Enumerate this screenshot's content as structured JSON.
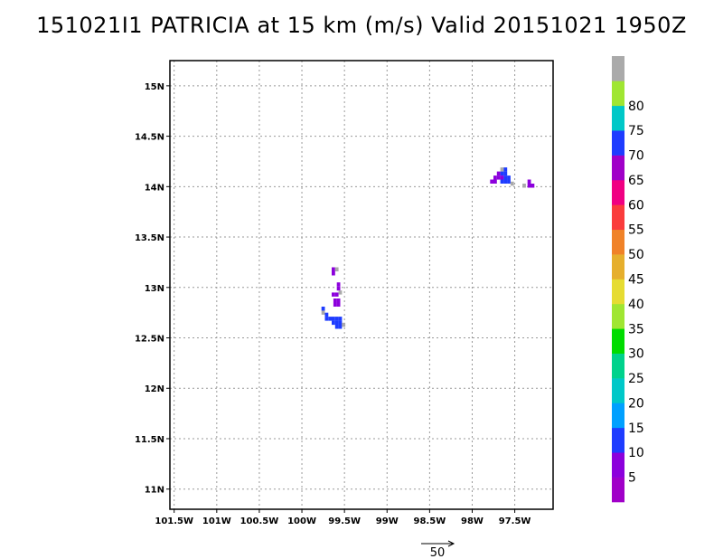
{
  "chart_data": {
    "type": "heatmap",
    "title": "151021I1 PATRICIA at 15 km (m/s) Valid 20151021 1950Z",
    "xlim": [
      -101.55,
      -97.05
    ],
    "ylim": [
      10.8,
      15.25
    ],
    "grid": true,
    "x_ticks": [
      {
        "value": -101.5,
        "label": "101.5W"
      },
      {
        "value": -101.0,
        "label": "101W"
      },
      {
        "value": -100.5,
        "label": "100.5W"
      },
      {
        "value": -100.0,
        "label": "100W"
      },
      {
        "value": -99.5,
        "label": "99.5W"
      },
      {
        "value": -99.0,
        "label": "99W"
      },
      {
        "value": -98.5,
        "label": "98.5W"
      },
      {
        "value": -98.0,
        "label": "98W"
      },
      {
        "value": -97.5,
        "label": "97.5W"
      }
    ],
    "y_ticks": [
      {
        "value": 11.0,
        "label": "11N"
      },
      {
        "value": 11.5,
        "label": "11.5N"
      },
      {
        "value": 12.0,
        "label": "12N"
      },
      {
        "value": 12.5,
        "label": "12.5N"
      },
      {
        "value": 13.0,
        "label": "13N"
      },
      {
        "value": 13.5,
        "label": "13.5N"
      },
      {
        "value": 14.0,
        "label": "14N"
      },
      {
        "value": 14.5,
        "label": "14.5N"
      },
      {
        "value": 15.0,
        "label": "15N"
      }
    ],
    "colorbar": {
      "levels": [
        {
          "value": 0,
          "color": "#a000c8"
        },
        {
          "value": 5,
          "color": "#8c00dc"
        },
        {
          "value": 10,
          "color": "#1e3cff"
        },
        {
          "value": 15,
          "color": "#00a0ff"
        },
        {
          "value": 20,
          "color": "#00c8c8"
        },
        {
          "value": 25,
          "color": "#00d28c"
        },
        {
          "value": 30,
          "color": "#00dc00"
        },
        {
          "value": 35,
          "color": "#a0e632"
        },
        {
          "value": 40,
          "color": "#e6dc32"
        },
        {
          "value": 45,
          "color": "#e6af2d"
        },
        {
          "value": 50,
          "color": "#f08228"
        },
        {
          "value": 55,
          "color": "#fa3c3c"
        },
        {
          "value": 60,
          "color": "#f00082"
        },
        {
          "value": 65,
          "color": "#a000c8"
        },
        {
          "value": 70,
          "color": "#1e3cff"
        },
        {
          "value": 75,
          "color": "#00c8c8"
        },
        {
          "value": 80,
          "color": "#a0e632"
        },
        {
          "value": 85,
          "color": "#aaaaaa"
        }
      ],
      "tick_labels": [
        "5",
        "10",
        "15",
        "20",
        "25",
        "30",
        "35",
        "40",
        "45",
        "50",
        "55",
        "60",
        "65",
        "70",
        "75",
        "80"
      ]
    },
    "cells": [
      {
        "lon": -99.63,
        "lat": 13.18,
        "color": "#8c00dc"
      },
      {
        "lon": -99.63,
        "lat": 13.14,
        "color": "#8c00dc"
      },
      {
        "lon": -99.59,
        "lat": 13.18,
        "color": "#aaaaaa"
      },
      {
        "lon": -99.57,
        "lat": 13.03,
        "color": "#8c00dc"
      },
      {
        "lon": -99.57,
        "lat": 12.99,
        "color": "#8c00dc"
      },
      {
        "lon": -99.63,
        "lat": 12.93,
        "color": "#8c00dc"
      },
      {
        "lon": -99.59,
        "lat": 12.93,
        "color": "#8c00dc"
      },
      {
        "lon": -99.55,
        "lat": 12.95,
        "color": "#aaaaaa"
      },
      {
        "lon": -99.61,
        "lat": 12.87,
        "color": "#8c00dc"
      },
      {
        "lon": -99.57,
        "lat": 12.87,
        "color": "#8c00dc"
      },
      {
        "lon": -99.61,
        "lat": 12.83,
        "color": "#8c00dc"
      },
      {
        "lon": -99.57,
        "lat": 12.83,
        "color": "#8c00dc"
      },
      {
        "lon": -99.75,
        "lat": 12.79,
        "color": "#1e3cff"
      },
      {
        "lon": -99.75,
        "lat": 12.75,
        "color": "#aaaaaa"
      },
      {
        "lon": -99.71,
        "lat": 12.73,
        "color": "#1e3cff"
      },
      {
        "lon": -99.71,
        "lat": 12.69,
        "color": "#1e3cff"
      },
      {
        "lon": -99.67,
        "lat": 12.69,
        "color": "#1e3cff"
      },
      {
        "lon": -99.63,
        "lat": 12.69,
        "color": "#1e3cff"
      },
      {
        "lon": -99.59,
        "lat": 12.69,
        "color": "#1e3cff"
      },
      {
        "lon": -99.55,
        "lat": 12.69,
        "color": "#1e3cff"
      },
      {
        "lon": -99.63,
        "lat": 12.65,
        "color": "#1e3cff"
      },
      {
        "lon": -99.59,
        "lat": 12.65,
        "color": "#1e3cff"
      },
      {
        "lon": -99.55,
        "lat": 12.65,
        "color": "#1e3cff"
      },
      {
        "lon": -99.59,
        "lat": 12.61,
        "color": "#1e3cff"
      },
      {
        "lon": -99.55,
        "lat": 12.61,
        "color": "#1e3cff"
      },
      {
        "lon": -99.51,
        "lat": 12.63,
        "color": "#aaaaaa"
      },
      {
        "lon": -97.65,
        "lat": 14.17,
        "color": "#aaaaaa"
      },
      {
        "lon": -97.61,
        "lat": 14.17,
        "color": "#1e3cff"
      },
      {
        "lon": -97.69,
        "lat": 14.13,
        "color": "#8c00dc"
      },
      {
        "lon": -97.65,
        "lat": 14.13,
        "color": "#1e3cff"
      },
      {
        "lon": -97.61,
        "lat": 14.13,
        "color": "#1e3cff"
      },
      {
        "lon": -97.73,
        "lat": 14.09,
        "color": "#8c00dc"
      },
      {
        "lon": -97.69,
        "lat": 14.09,
        "color": "#8c00dc"
      },
      {
        "lon": -97.65,
        "lat": 14.09,
        "color": "#8c00dc"
      },
      {
        "lon": -97.61,
        "lat": 14.09,
        "color": "#1e3cff"
      },
      {
        "lon": -97.57,
        "lat": 14.09,
        "color": "#1e3cff"
      },
      {
        "lon": -97.77,
        "lat": 14.05,
        "color": "#8c00dc"
      },
      {
        "lon": -97.73,
        "lat": 14.05,
        "color": "#8c00dc"
      },
      {
        "lon": -97.65,
        "lat": 14.05,
        "color": "#1e3cff"
      },
      {
        "lon": -97.61,
        "lat": 14.05,
        "color": "#1e3cff"
      },
      {
        "lon": -97.57,
        "lat": 14.05,
        "color": "#1e3cff"
      },
      {
        "lon": -97.53,
        "lat": 14.03,
        "color": "#aaaaaa"
      },
      {
        "lon": -97.33,
        "lat": 14.05,
        "color": "#8c00dc"
      },
      {
        "lon": -97.33,
        "lat": 14.01,
        "color": "#8c00dc"
      },
      {
        "lon": -97.29,
        "lat": 14.01,
        "color": "#8c00dc"
      },
      {
        "lon": -97.39,
        "lat": 14.01,
        "color": "#aaaaaa"
      }
    ],
    "reference_vector": {
      "label": "50"
    }
  }
}
